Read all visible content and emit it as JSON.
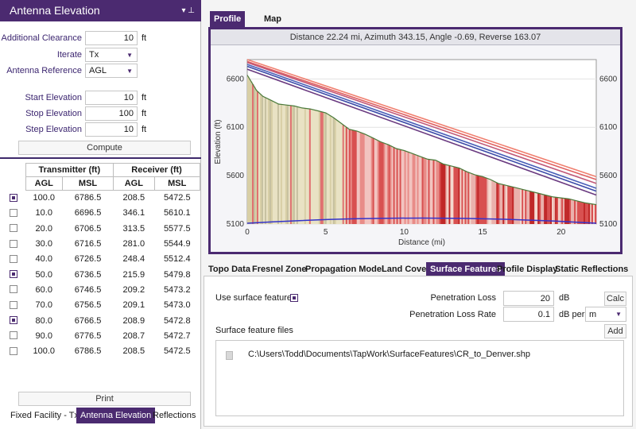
{
  "left_panel": {
    "title": "Antenna Elevation",
    "title_icons": "▾ ⊥",
    "fields": {
      "additional_clearance": {
        "label": "Additional Clearance",
        "value": "10",
        "unit": "ft"
      },
      "iterate": {
        "label": "Iterate",
        "value": "Tx"
      },
      "antenna_reference": {
        "label": "Antenna Reference",
        "value": "AGL"
      },
      "start_elevation": {
        "label": "Start Elevation",
        "value": "10",
        "unit": "ft"
      },
      "stop_elevation": {
        "label": "Stop Elevation",
        "value": "100",
        "unit": "ft"
      },
      "step_elevation": {
        "label": "Step Elevation",
        "value": "10",
        "unit": "ft"
      }
    },
    "compute_label": "Compute",
    "print_label": "Print",
    "table": {
      "group_headers": [
        "Transmitter (ft)",
        "Receiver (ft)"
      ],
      "col_headers": [
        "AGL",
        "MSL",
        "AGL",
        "MSL"
      ],
      "rows": [
        {
          "checked": true,
          "cells": [
            "100.0",
            "6786.5",
            "208.5",
            "5472.5"
          ]
        },
        {
          "checked": false,
          "cells": [
            "10.0",
            "6696.5",
            "346.1",
            "5610.1"
          ]
        },
        {
          "checked": false,
          "cells": [
            "20.0",
            "6706.5",
            "313.5",
            "5577.5"
          ]
        },
        {
          "checked": false,
          "cells": [
            "30.0",
            "6716.5",
            "281.0",
            "5544.9"
          ]
        },
        {
          "checked": false,
          "cells": [
            "40.0",
            "6726.5",
            "248.4",
            "5512.4"
          ]
        },
        {
          "checked": true,
          "cells": [
            "50.0",
            "6736.5",
            "215.9",
            "5479.8"
          ]
        },
        {
          "checked": false,
          "cells": [
            "60.0",
            "6746.5",
            "209.2",
            "5473.2"
          ]
        },
        {
          "checked": false,
          "cells": [
            "70.0",
            "6756.5",
            "209.1",
            "5473.0"
          ]
        },
        {
          "checked": true,
          "cells": [
            "80.0",
            "6766.5",
            "208.9",
            "5472.8"
          ]
        },
        {
          "checked": false,
          "cells": [
            "90.0",
            "6776.5",
            "208.7",
            "5472.7"
          ]
        },
        {
          "checked": false,
          "cells": [
            "100.0",
            "6786.5",
            "208.5",
            "5472.5"
          ]
        }
      ]
    },
    "tabs": [
      "Fixed Facility - Tx",
      "Antenna Elevation",
      "Reflections"
    ],
    "active_tab": "Antenna Elevation"
  },
  "view_tabs": [
    "Profile View",
    "Map View"
  ],
  "active_view_tab": "Profile View",
  "distance_info": "Distance 22.24 mi, Azimuth 343.15, Angle -0.69, Reverse 163.07",
  "chart_data": {
    "type": "line",
    "xlabel": "Distance (mi)",
    "ylabel": "Elevation (ft)",
    "xlim": [
      0,
      22.24
    ],
    "ylim": [
      5100,
      6800
    ],
    "x_ticks": [
      "0",
      "5",
      "10",
      "15",
      "20"
    ],
    "y_ticks": [
      "5100",
      "5600",
      "6100",
      "6600"
    ],
    "terrain": {
      "x": [
        0,
        0.3,
        0.6,
        1.0,
        1.5,
        2.0,
        2.5,
        3.0,
        3.5,
        4.0,
        4.5,
        5.0,
        5.5,
        6.0,
        6.5,
        7.0,
        7.5,
        8.0,
        8.5,
        9.0,
        9.5,
        10.0,
        10.5,
        11.0,
        11.5,
        12.0,
        12.5,
        13.0,
        13.5,
        14.0,
        14.5,
        15.0,
        15.5,
        16.0,
        16.5,
        17.0,
        17.5,
        18.0,
        18.5,
        19.0,
        19.5,
        20.0,
        20.5,
        21.0,
        21.5,
        22.24
      ],
      "y": [
        6640,
        6560,
        6480,
        6420,
        6380,
        6340,
        6330,
        6320,
        6300,
        6290,
        6270,
        6250,
        6200,
        6140,
        6080,
        6060,
        6030,
        5990,
        5950,
        5920,
        5880,
        5860,
        5830,
        5800,
        5770,
        5760,
        5720,
        5700,
        5680,
        5640,
        5610,
        5590,
        5560,
        5520,
        5500,
        5480,
        5460,
        5440,
        5420,
        5400,
        5380,
        5370,
        5360,
        5340,
        5320,
        5300
      ]
    },
    "radio_lines": [
      {
        "color": "#f08070",
        "y0": 6800,
        "y1": 5590
      },
      {
        "color": "#e06060",
        "y0": 6780,
        "y1": 5560
      },
      {
        "color": "#c05878",
        "y0": 6770,
        "y1": 5520
      },
      {
        "color": "#4a5fb8",
        "y0": 6750,
        "y1": 5470
      },
      {
        "color": "#3a4aa8",
        "y0": 6730,
        "y1": 5440
      },
      {
        "color": "#6a3a80",
        "y0": 6700,
        "y1": 5400
      }
    ],
    "earth_curve_color": "#3333cc"
  },
  "feature_tabs": [
    "Topo Data",
    "Fresnel Zone",
    "Propagation Model",
    "Land Cover",
    "Surface Features",
    "Profile Display",
    "Static Reflections"
  ],
  "active_feature_tab": "Surface Features",
  "surface": {
    "use_label": "Use surface features",
    "use_checked": true,
    "penetration_loss_label": "Penetration Loss",
    "penetration_loss_value": "20",
    "penetration_loss_unit": "dB",
    "penetration_rate_label": "Penetration Loss Rate",
    "penetration_rate_value": "0.1",
    "penetration_rate_unit": "dB per",
    "rate_unit_select": "m",
    "calc_label": "Calc",
    "files_label": "Surface feature files",
    "add_label": "Add",
    "files": [
      "C:\\Users\\Todd\\Documents\\TapWork\\SurfaceFeatures\\CR_to_Denver.shp"
    ]
  }
}
